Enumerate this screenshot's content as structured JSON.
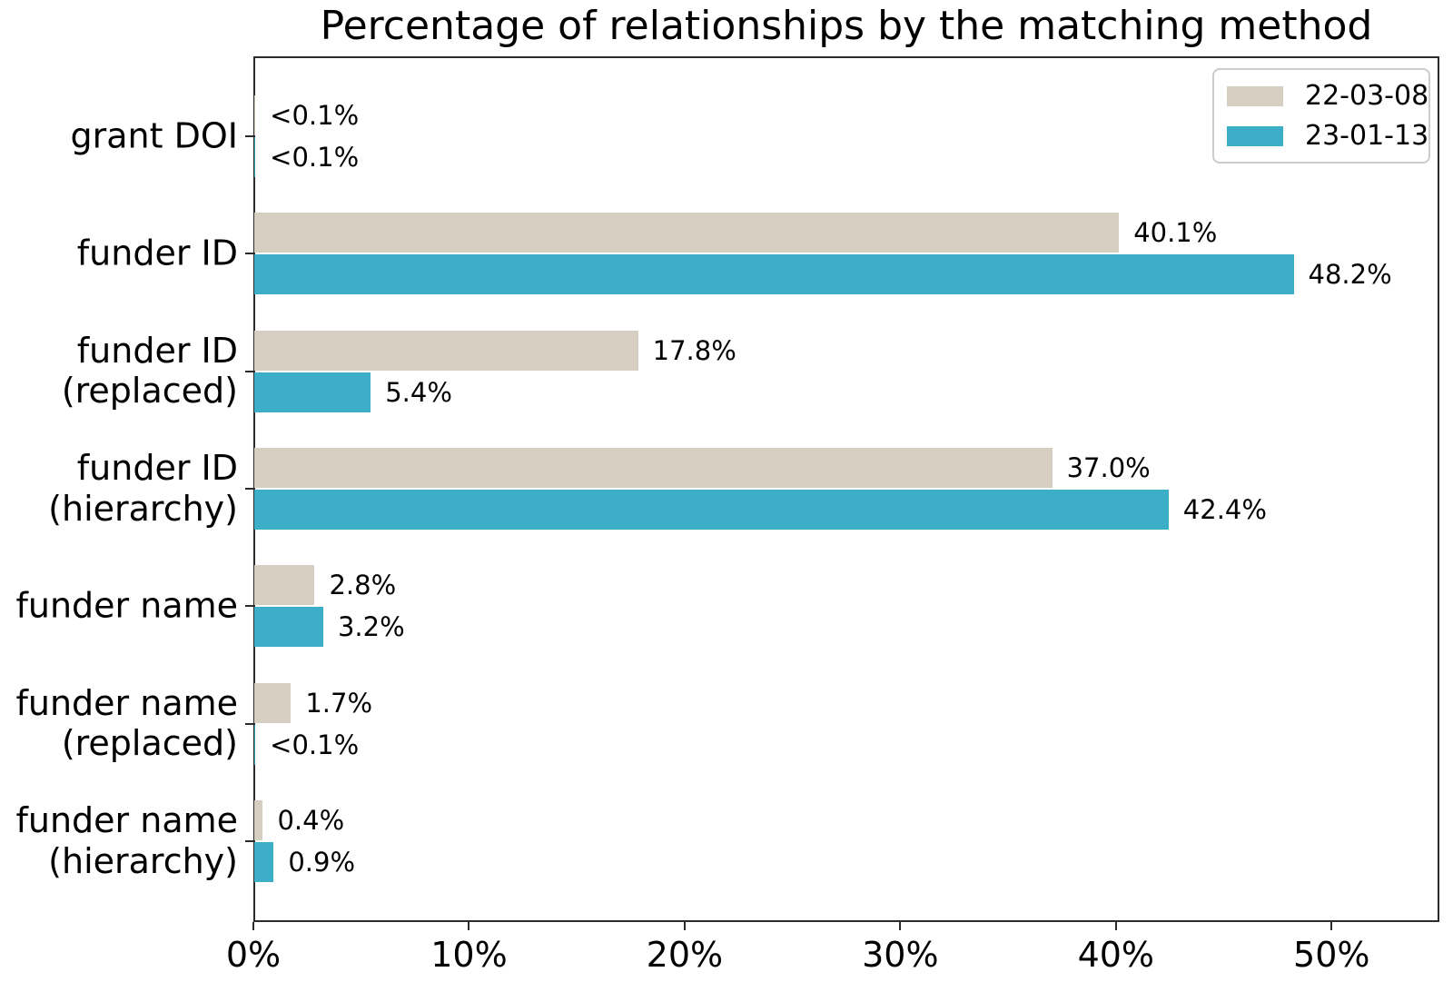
{
  "chart_data": {
    "type": "bar",
    "orientation": "horizontal",
    "title": "Percentage of relationships by the matching method",
    "categories": [
      [
        "grant DOI"
      ],
      [
        "funder ID"
      ],
      [
        "funder ID",
        "(replaced)"
      ],
      [
        "funder ID",
        "(hierarchy)"
      ],
      [
        "funder name"
      ],
      [
        "funder name",
        "(replaced)"
      ],
      [
        "funder name",
        "(hierarchy)"
      ]
    ],
    "series": [
      {
        "name": "22-03-08",
        "color": "#d6cfc1",
        "values": [
          0.05,
          40.1,
          17.8,
          37.0,
          2.8,
          1.7,
          0.4
        ],
        "labels": [
          "<0.1%",
          "40.1%",
          "17.8%",
          "37.0%",
          "2.8%",
          "1.7%",
          "0.4%"
        ]
      },
      {
        "name": "23-01-13",
        "color": "#3caec8",
        "values": [
          0.05,
          48.2,
          5.4,
          42.4,
          3.2,
          0.05,
          0.9
        ],
        "labels": [
          "<0.1%",
          "48.2%",
          "5.4%",
          "42.4%",
          "3.2%",
          "<0.1%",
          "0.9%"
        ]
      }
    ],
    "x_axis": {
      "max": 55,
      "ticks": [
        {
          "value": 0,
          "label": "0%"
        },
        {
          "value": 10,
          "label": "10%"
        },
        {
          "value": 20,
          "label": "20%"
        },
        {
          "value": 30,
          "label": "30%"
        },
        {
          "value": 40,
          "label": "40%"
        },
        {
          "value": 50,
          "label": "50%"
        }
      ]
    },
    "legend_position": "upper right",
    "grid": false
  }
}
